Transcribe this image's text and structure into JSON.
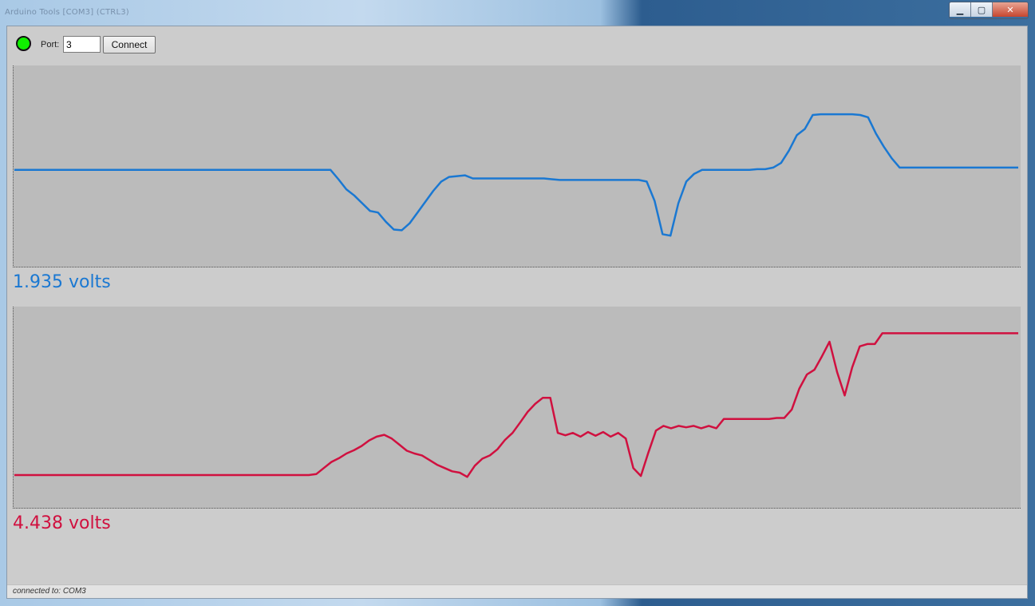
{
  "window": {
    "title": "Arduino Tools [COM3] (CTRL3)",
    "controls": {
      "minimize": "▁",
      "maximize": "▢",
      "close": "✕"
    }
  },
  "toolbar": {
    "status_led_color": "#10f000",
    "port_label": "Port:",
    "port_value": "3",
    "connect_label": "Connect"
  },
  "colors": {
    "series1": "#1a78d2",
    "series2": "#d0103f",
    "plot_bg": "#bbbbbb"
  },
  "readouts": {
    "channel1": "1.935 volts",
    "channel2": "4.438 volts"
  },
  "status": {
    "text": "connected to: COM3"
  },
  "chart_data": [
    {
      "type": "line",
      "series": [
        {
          "values": [
            2.25,
            2.25,
            2.25,
            2.25,
            2.25,
            2.25,
            2.25,
            2.25,
            2.25,
            2.25,
            2.25,
            2.25,
            2.25,
            2.25,
            2.25,
            2.25,
            2.25,
            2.25,
            2.25,
            2.25,
            2.25,
            2.25,
            2.25,
            2.25,
            2.25,
            2.25,
            2.25,
            2.25,
            2.25,
            2.25,
            2.25,
            2.25,
            2.25,
            2.25,
            2.25,
            2.25,
            2.25,
            2.25,
            2.25,
            2.25,
            2.25,
            2.13,
            2.0,
            1.92,
            1.82,
            1.72,
            1.7,
            1.58,
            1.48,
            1.47,
            1.56,
            1.7,
            1.84,
            1.98,
            2.1,
            2.16,
            2.17,
            2.18,
            2.14,
            2.14,
            2.14,
            2.14,
            2.14,
            2.14,
            2.14,
            2.14,
            2.14,
            2.14,
            2.13,
            2.12,
            2.12,
            2.12,
            2.12,
            2.12,
            2.12,
            2.12,
            2.12,
            2.12,
            2.12,
            2.12,
            2.1,
            1.85,
            1.42,
            1.4,
            1.82,
            2.1,
            2.2,
            2.25,
            2.25,
            2.25,
            2.25,
            2.25,
            2.25,
            2.25,
            2.26,
            2.26,
            2.28,
            2.34,
            2.5,
            2.7,
            2.78,
            2.96,
            2.97,
            2.97,
            2.97,
            2.97,
            2.97,
            2.96,
            2.93,
            2.72,
            2.55,
            2.4,
            2.28,
            2.28,
            2.28,
            2.28,
            2.28,
            2.28,
            2.28,
            2.28,
            2.28,
            2.28,
            2.28,
            2.28,
            2.28,
            2.28,
            2.28,
            2.28
          ],
          "ylim": [
            1.0,
            3.6
          ]
        }
      ]
    },
    {
      "type": "line",
      "series": [
        {
          "values": [
            1.4,
            1.4,
            1.4,
            1.4,
            1.4,
            1.4,
            1.4,
            1.4,
            1.4,
            1.4,
            1.4,
            1.4,
            1.4,
            1.4,
            1.4,
            1.4,
            1.4,
            1.4,
            1.4,
            1.4,
            1.4,
            1.4,
            1.4,
            1.4,
            1.4,
            1.4,
            1.4,
            1.4,
            1.4,
            1.4,
            1.4,
            1.4,
            1.4,
            1.4,
            1.4,
            1.4,
            1.4,
            1.4,
            1.4,
            1.4,
            1.42,
            1.55,
            1.68,
            1.76,
            1.86,
            1.93,
            2.02,
            2.14,
            2.22,
            2.26,
            2.18,
            2.05,
            1.92,
            1.86,
            1.82,
            1.72,
            1.62,
            1.55,
            1.48,
            1.45,
            1.36,
            1.6,
            1.75,
            1.82,
            1.95,
            2.15,
            2.3,
            2.52,
            2.75,
            2.92,
            3.05,
            3.05,
            2.3,
            2.25,
            2.3,
            2.22,
            2.32,
            2.24,
            2.32,
            2.22,
            2.3,
            2.18,
            1.55,
            1.38,
            1.88,
            2.35,
            2.45,
            2.4,
            2.45,
            2.42,
            2.45,
            2.4,
            2.45,
            2.4,
            2.6,
            2.6,
            2.6,
            2.6,
            2.6,
            2.6,
            2.6,
            2.62,
            2.62,
            2.8,
            3.25,
            3.55,
            3.65,
            3.94,
            4.25,
            3.6,
            3.1,
            3.7,
            4.15,
            4.2,
            4.2,
            4.43,
            4.43,
            4.43,
            4.43,
            4.43,
            4.43,
            4.43,
            4.43,
            4.43,
            4.43,
            4.43,
            4.43,
            4.43,
            4.43,
            4.43,
            4.43,
            4.43,
            4.43,
            4.43
          ],
          "ylim": [
            0.7,
            5.0
          ]
        }
      ]
    }
  ]
}
